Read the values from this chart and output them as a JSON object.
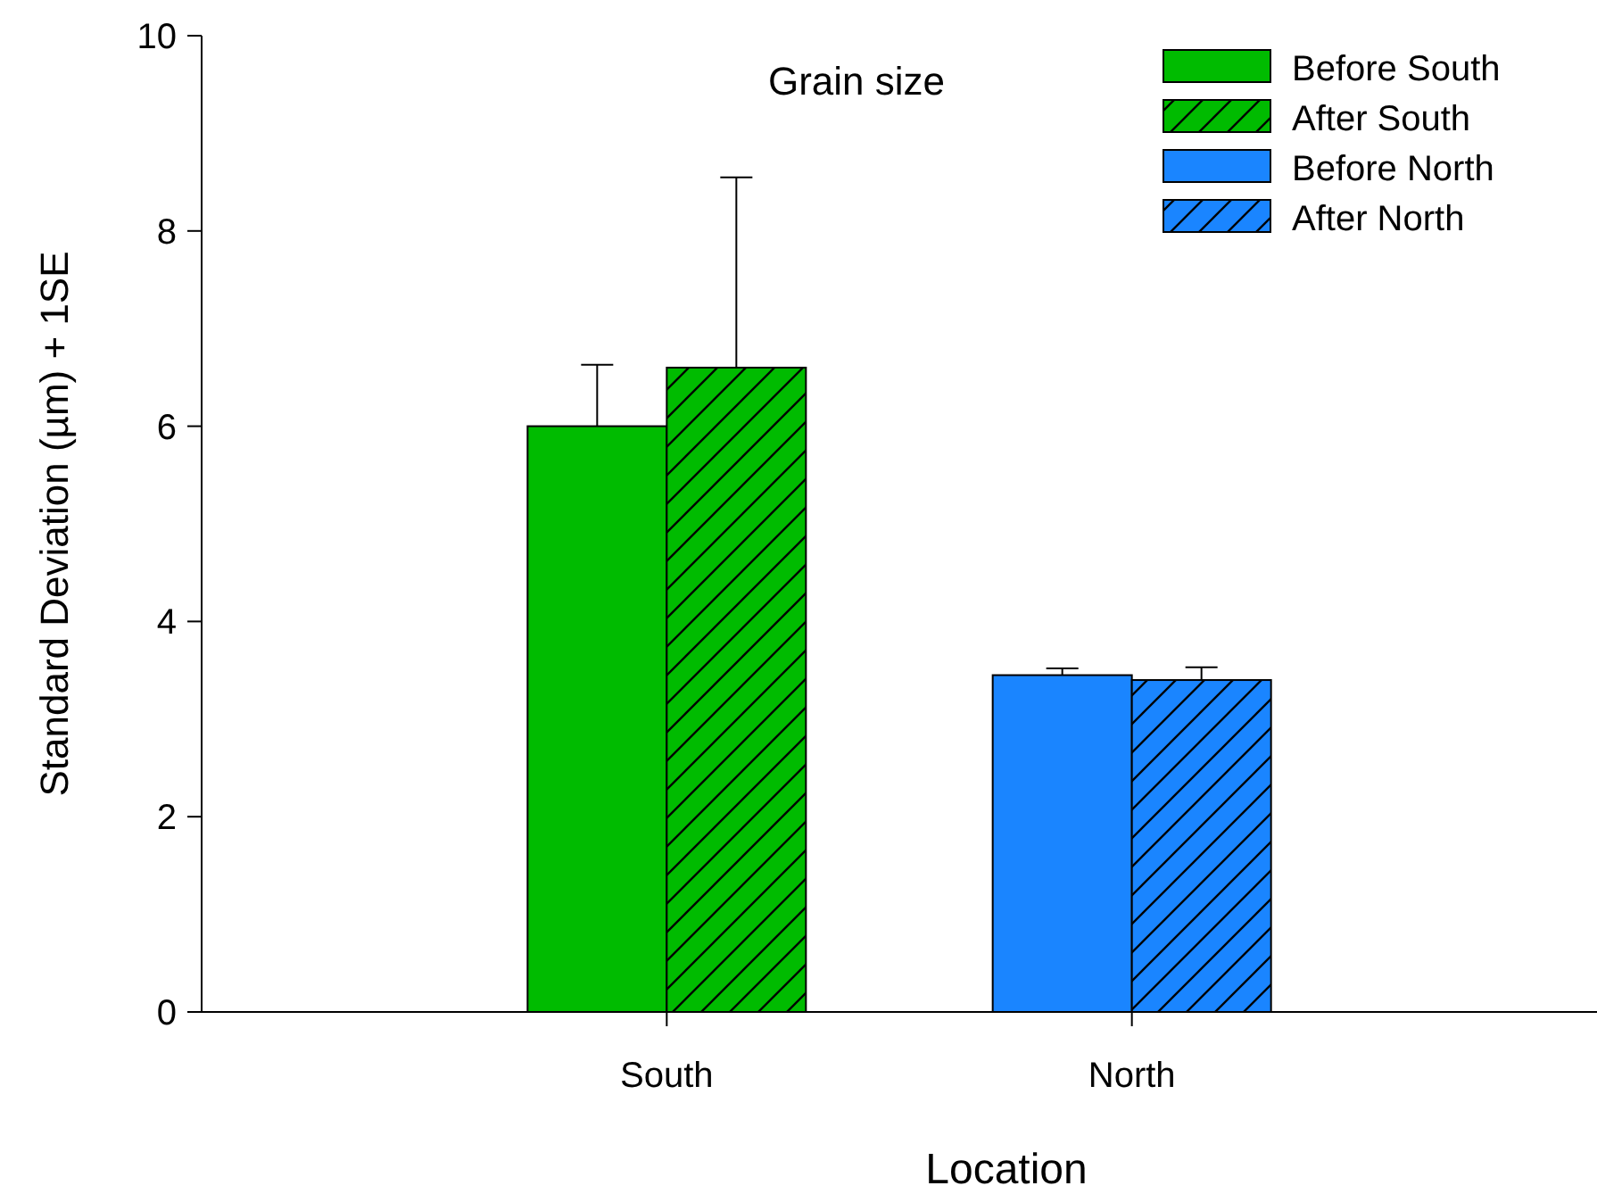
{
  "chart_data": {
    "type": "bar",
    "title": "Grain size",
    "xlabel": "Location",
    "ylabel": "Standard Deviation (µm) + 1SE",
    "categories": [
      "South",
      "North"
    ],
    "ylim": [
      0,
      10
    ],
    "yticks": [
      0,
      2,
      4,
      6,
      8,
      10
    ],
    "grid": false,
    "legend": "top right",
    "series": [
      {
        "name": "Before South",
        "color": "#00bb00",
        "values": [
          6.0,
          null
        ],
        "errors": [
          [
            6.0,
            6.63
          ],
          null
        ]
      },
      {
        "name": "After South",
        "color": "#00bb00",
        "values": [
          6.6,
          null
        ],
        "errors": [
          [
            6.6,
            8.55
          ],
          null
        ]
      },
      {
        "name": "Before North",
        "color": "#1a85ff",
        "values": [
          null,
          3.45
        ],
        "errors": [
          null,
          [
            3.45,
            3.52
          ]
        ]
      },
      {
        "name": "After North",
        "color": "#1a85ff",
        "values": [
          null,
          3.4
        ],
        "errors": [
          null,
          [
            3.4,
            3.53
          ]
        ]
      }
    ]
  }
}
